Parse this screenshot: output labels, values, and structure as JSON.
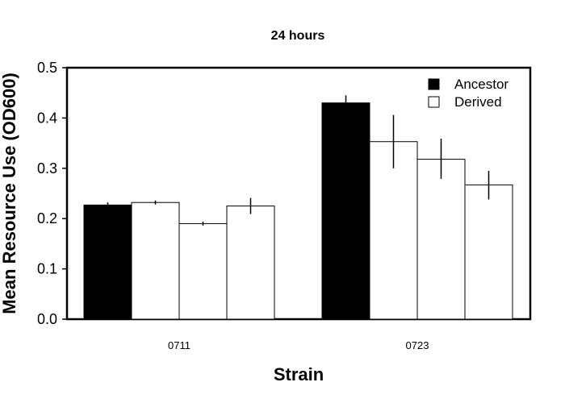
{
  "chart_data": {
    "type": "bar",
    "title": "24 hours",
    "xlabel": "Strain",
    "ylabel": "Mean Resource Use (OD600)",
    "ylim": [
      0,
      0.5
    ],
    "yticks": [
      0.0,
      0.1,
      0.2,
      0.3,
      0.4,
      0.5
    ],
    "ytick_labels": [
      "0.0",
      "0.1",
      "0.2",
      "0.3",
      "0.4",
      "0.5"
    ],
    "grid": false,
    "legend_position": "top-right",
    "legend": [
      {
        "label": "Ancestor",
        "fill": "#000000"
      },
      {
        "label": "Derived",
        "fill": "#ffffff"
      }
    ],
    "groups": [
      {
        "label": "0711",
        "bars": [
          {
            "series": "Ancestor",
            "value": 0.227,
            "err_low": 0.223,
            "err_high": 0.232
          },
          {
            "series": "Derived",
            "value": 0.232,
            "err_low": 0.228,
            "err_high": 0.236
          },
          {
            "series": "Derived",
            "value": 0.19,
            "err_low": 0.186,
            "err_high": 0.194
          },
          {
            "series": "Derived",
            "value": 0.225,
            "err_low": 0.209,
            "err_high": 0.241
          }
        ]
      },
      {
        "label": "0723",
        "bars": [
          {
            "series": "Ancestor",
            "value": 0.43,
            "err_low": 0.416,
            "err_high": 0.445
          },
          {
            "series": "Derived",
            "value": 0.353,
            "err_low": 0.3,
            "err_high": 0.406
          },
          {
            "series": "Derived",
            "value": 0.318,
            "err_low": 0.279,
            "err_high": 0.359
          },
          {
            "series": "Derived",
            "value": 0.267,
            "err_low": 0.238,
            "err_high": 0.295
          }
        ]
      }
    ]
  }
}
